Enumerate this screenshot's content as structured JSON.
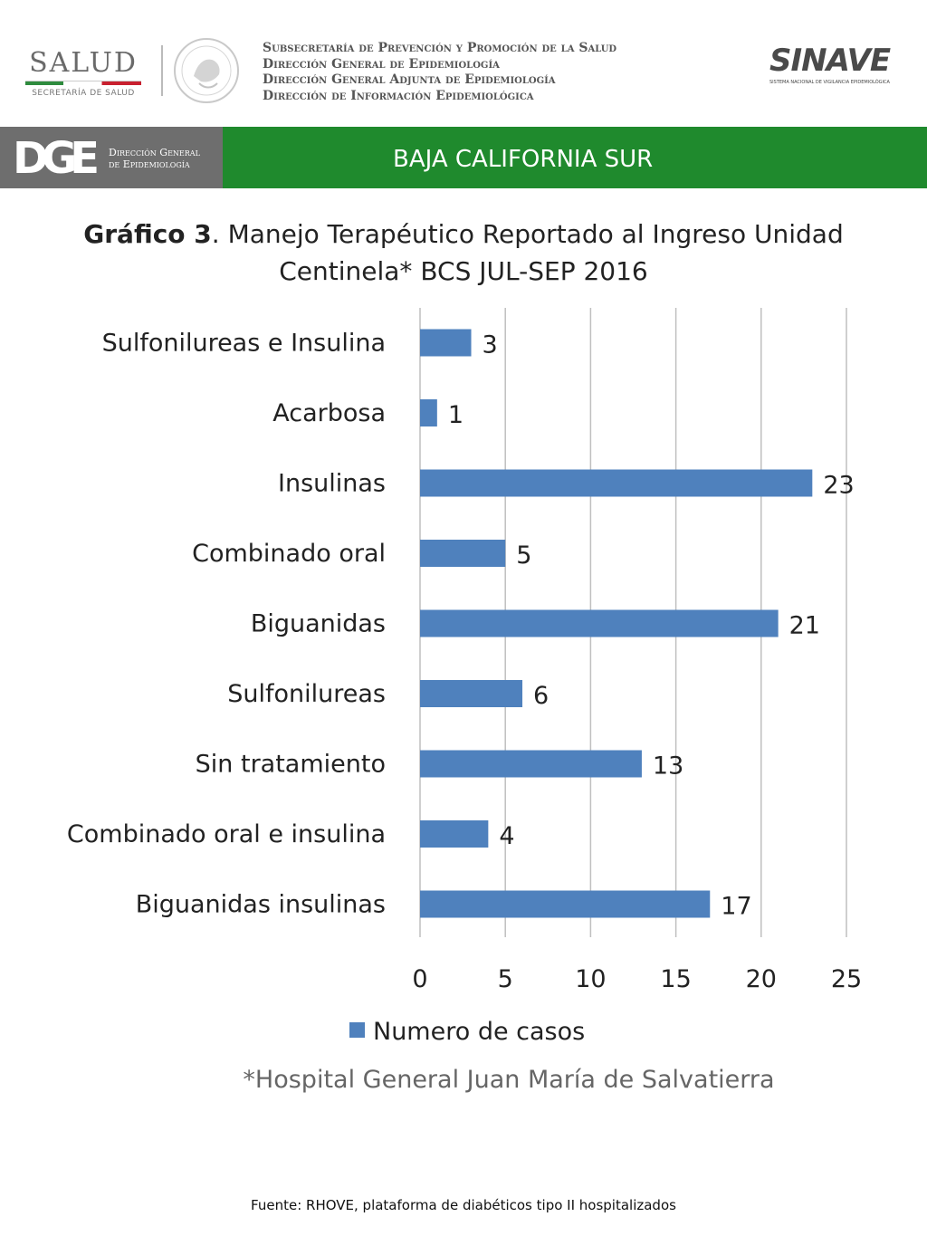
{
  "header": {
    "salud_logo": {
      "word": "SALUD",
      "subtitle": "SECRETARÍA DE SALUD"
    },
    "agency_lines": [
      "Subsecretaría de Prevención y Promoción de la Salud",
      "Dirección General de Epidemiología",
      "Dirección General Adjunta de Epidemiología",
      "Dirección de Información Epidemiológica"
    ],
    "sinave_logo": {
      "word": "SINAVE",
      "subtitle": "SISTEMA NACIONAL DE VIGILANCIA EPIDEMIOLÓGICA"
    }
  },
  "banner": {
    "dge_mark": "DGE",
    "dge_text_lines": [
      "Dirección General",
      "de Epidemiología"
    ],
    "title": "BAJA CALIFORNIA SUR"
  },
  "colors": {
    "banner_green": "#1f8a2d",
    "banner_gray": "#6e6e6e",
    "bar": "#4f81bd",
    "gridline": "#bfbfbf"
  },
  "chart_data": {
    "type": "bar",
    "orientation": "horizontal",
    "title_bold": "Gráfico 3",
    "title_rest": ". Manejo Terapéutico Reportado al Ingreso Unidad Centinela* BCS JUL-SEP 2016",
    "categories": [
      "Sulfonilureas e Insulina",
      "Acarbosa",
      "Insulinas",
      "Combinado oral",
      "Biguanidas",
      "Sulfonilureas",
      "Sin tratamiento",
      "Combinado oral e insulina",
      "Biguanidas insulinas"
    ],
    "series": [
      {
        "name": "Numero de casos",
        "values": [
          3,
          1,
          23,
          5,
          21,
          6,
          13,
          4,
          17
        ]
      }
    ],
    "xlim": [
      0,
      25
    ],
    "xticks": [
      0,
      5,
      10,
      15,
      20,
      25
    ],
    "grid": true,
    "legend_position": "bottom",
    "data_labels": true
  },
  "note": "*Hospital General Juan María de Salvatierra",
  "source": "Fuente: RHOVE, plataforma de diabéticos tipo II hospitalizados"
}
